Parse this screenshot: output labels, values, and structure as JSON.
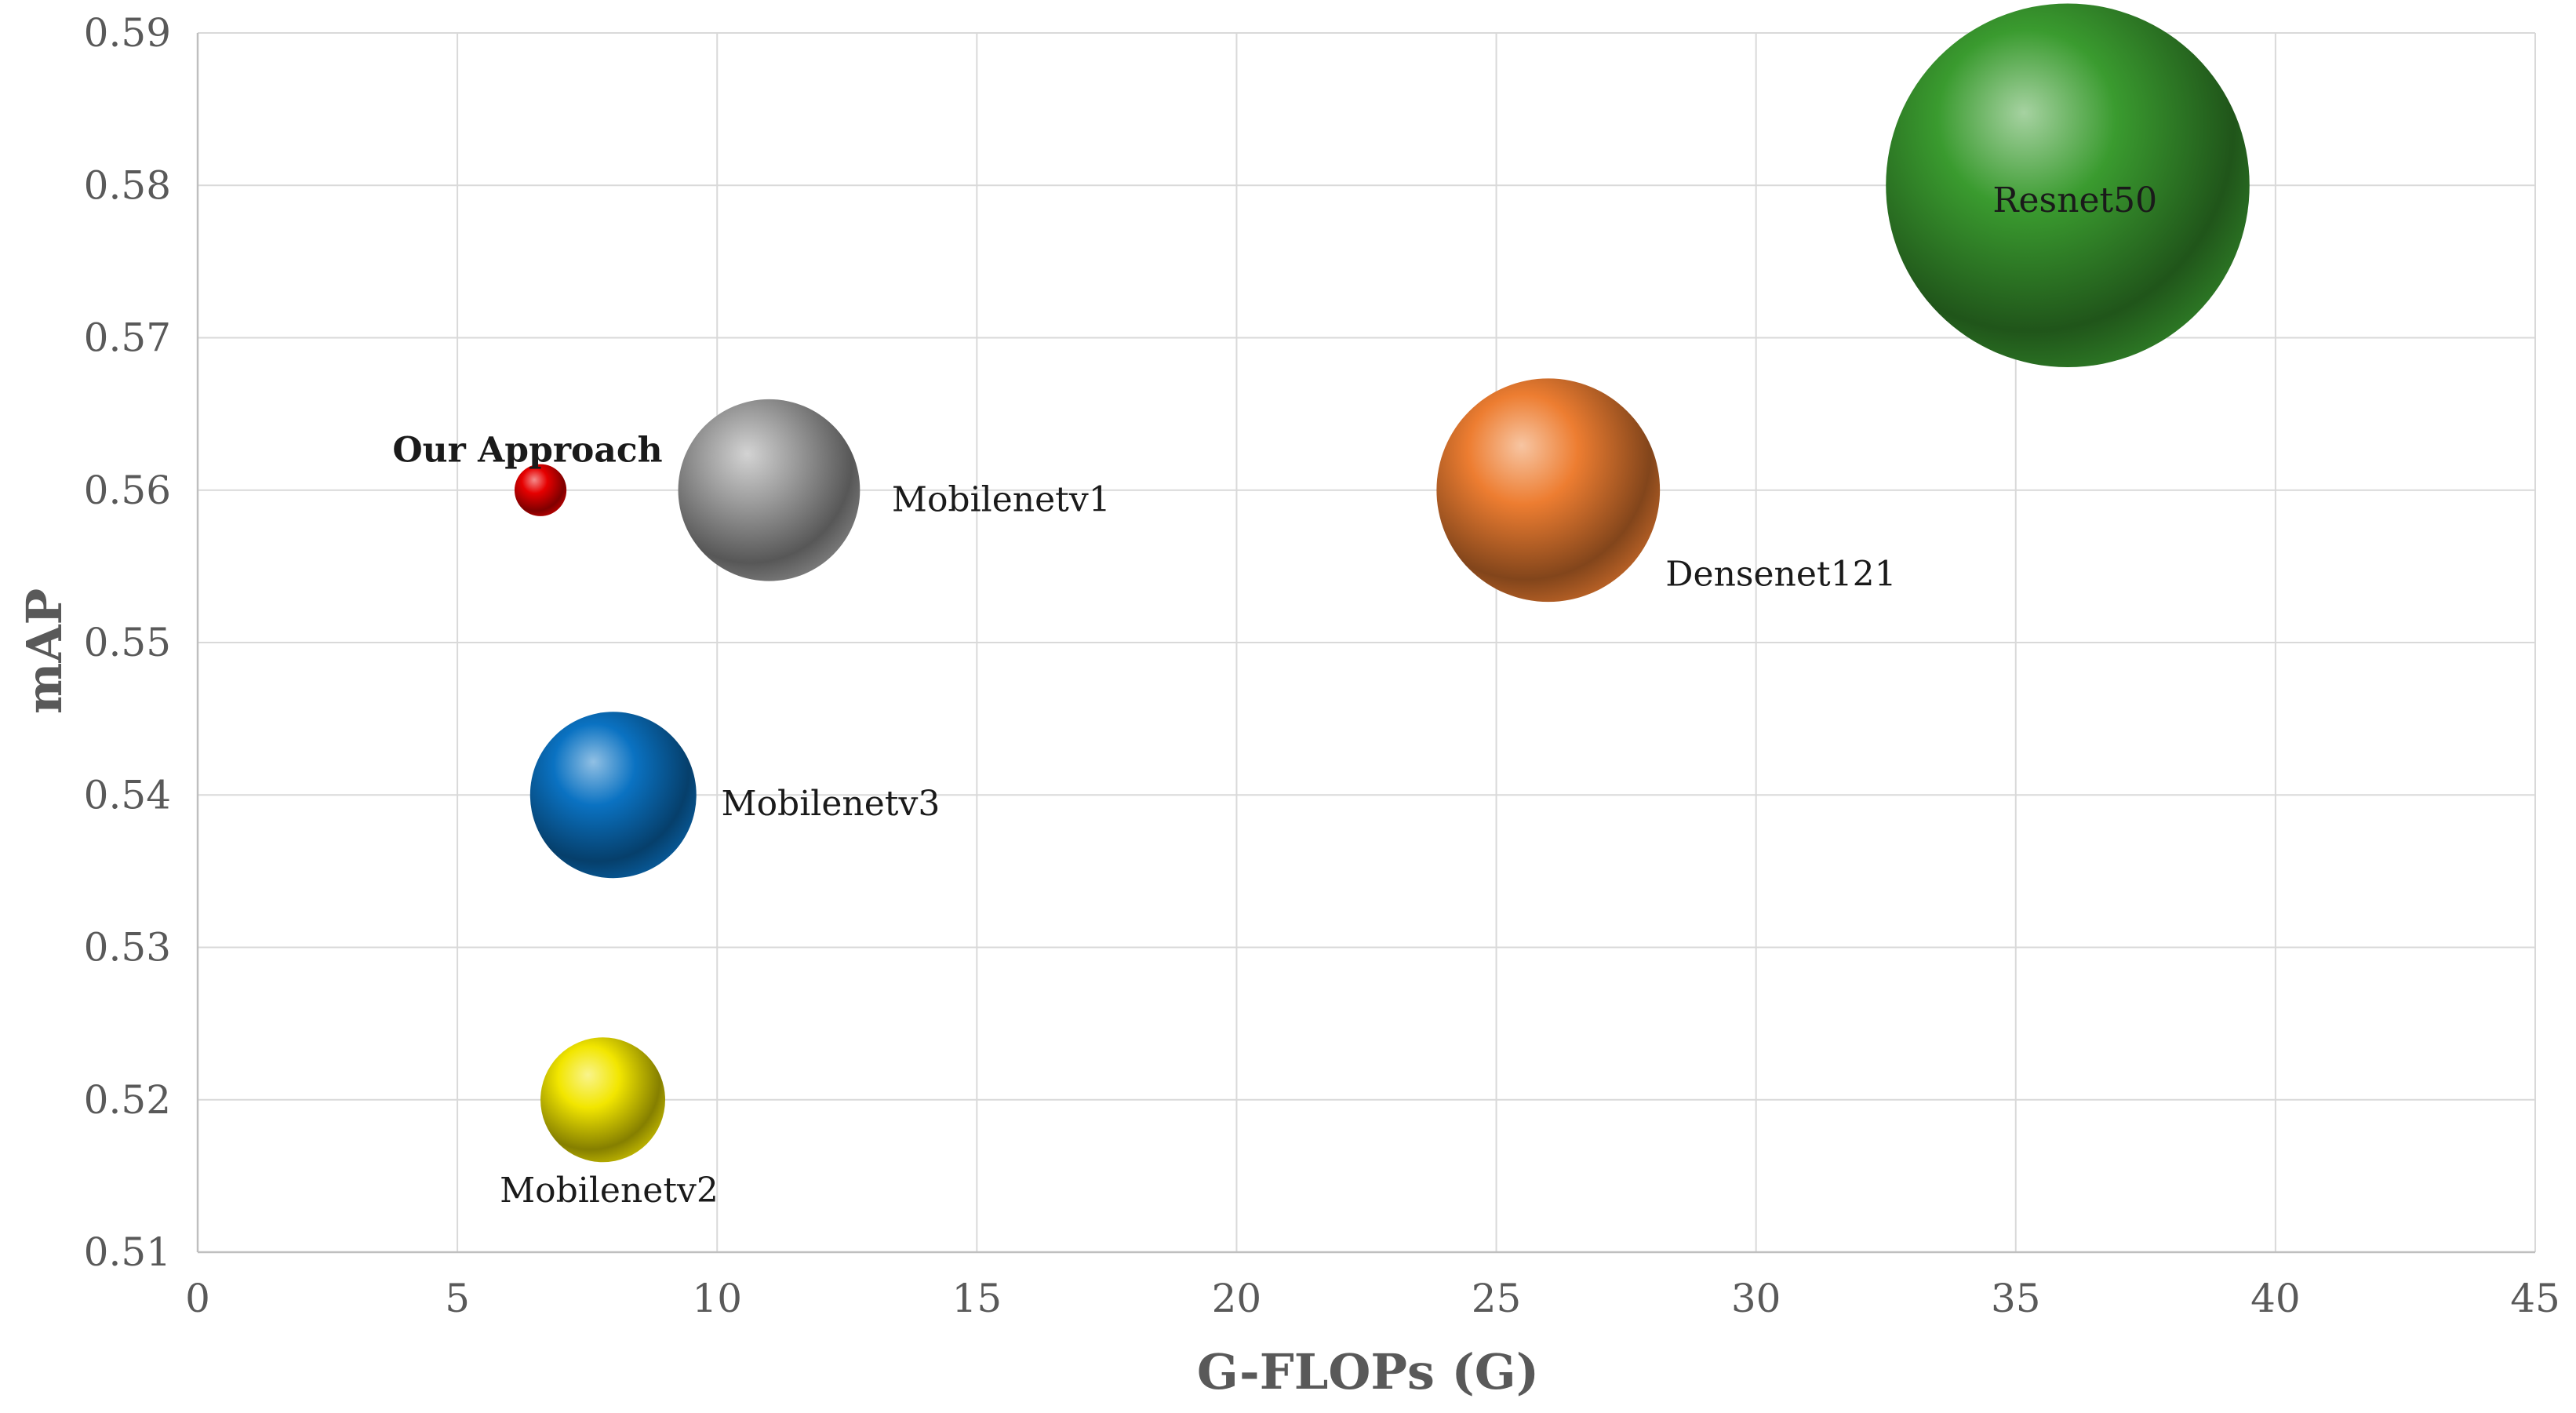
{
  "chart_data": {
    "type": "scatter",
    "title": "",
    "xlabel": "G-FLOPs (G)",
    "ylabel": "mAP",
    "xlim": [
      0,
      45
    ],
    "ylim": [
      0.51,
      0.59
    ],
    "x_ticks": [
      "0",
      "5",
      "10",
      "15",
      "20",
      "25",
      "30",
      "35",
      "40",
      "45"
    ],
    "y_ticks": [
      "0.51",
      "0.52",
      "0.53",
      "0.54",
      "0.55",
      "0.56",
      "0.57",
      "0.58",
      "0.59"
    ],
    "grid": true,
    "series": [
      {
        "name": "Our Approach",
        "x": 6.6,
        "y": 0.56,
        "size": 0.5,
        "color": "#e60000",
        "label_bold": true
      },
      {
        "name": "Mobilenetv1",
        "x": 11.0,
        "y": 0.56,
        "size": 1.75,
        "color": "#9e9e9e",
        "label_bold": false
      },
      {
        "name": "Mobilenetv3",
        "x": 8.0,
        "y": 0.54,
        "size": 1.6,
        "color": "#0a72c2",
        "label_bold": false
      },
      {
        "name": "Mobilenetv2",
        "x": 7.8,
        "y": 0.52,
        "size": 1.2,
        "color": "#f2e600",
        "label_bold": false
      },
      {
        "name": "Densenet121",
        "x": 26.0,
        "y": 0.56,
        "size": 2.15,
        "color": "#ed7d31",
        "label_bold": false
      },
      {
        "name": "Resnet50",
        "x": 36.0,
        "y": 0.58,
        "size": 3.5,
        "color": "#3a9b2f",
        "label_bold": false
      }
    ]
  }
}
